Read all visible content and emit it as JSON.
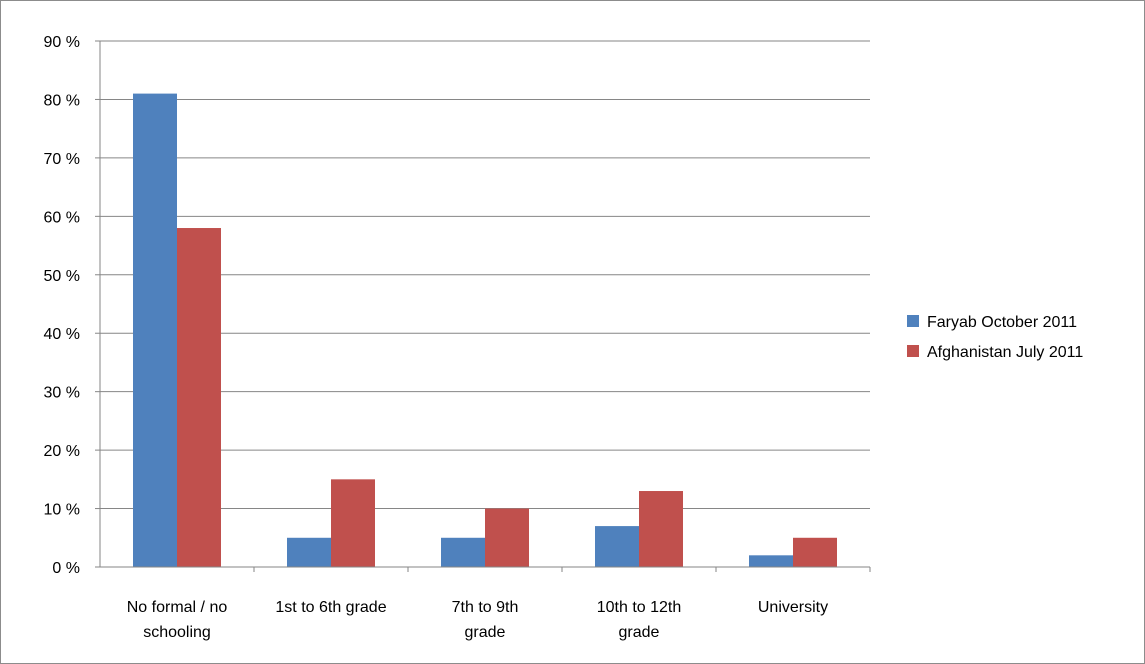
{
  "chart_data": {
    "type": "bar",
    "categories": [
      [
        "No formal / no",
        "schooling"
      ],
      [
        "1st to 6th grade"
      ],
      [
        "7th to 9th",
        "grade"
      ],
      [
        "10th to 12th",
        "grade"
      ],
      [
        "University"
      ]
    ],
    "series": [
      {
        "name": "Faryab October 2011",
        "color": "#4f81bd",
        "values": [
          81,
          5,
          5,
          7,
          2
        ]
      },
      {
        "name": "Afghanistan July 2011",
        "color": "#c0504d",
        "values": [
          58,
          15,
          10,
          13,
          5
        ]
      }
    ],
    "ylim": [
      0,
      90
    ],
    "ytick_step": 10,
    "ytick_labels": [
      "0 %",
      "10 %",
      "20 %",
      "30 %",
      "40 %",
      "50 %",
      "60 %",
      "70 %",
      "80 %",
      "90 %"
    ],
    "grid": true,
    "legend_position": "right"
  }
}
